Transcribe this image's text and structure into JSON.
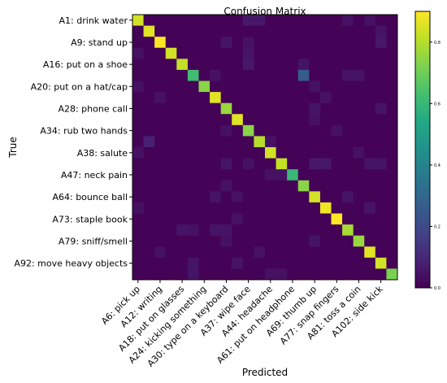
{
  "chart_data": {
    "type": "heatmap",
    "title": "Confusion Matrix",
    "xlabel": "Predicted",
    "ylabel": "True",
    "x_tick_labels": [
      "A6: pick up",
      "A12: writing",
      "A18: put on glasses",
      "A24: kicking something",
      "A30: type on a keyboard",
      "A37: wipe face",
      "A44: headache",
      "A61: put on headphone",
      "A69: thumb up",
      "A77: snap fingers",
      "A81: toss a coin",
      "A102: side kick"
    ],
    "y_tick_labels": [
      "A1: drink water",
      "A9: stand up",
      "A16: put on a shoe",
      "A20: put on a hat/cap",
      "A28: phone call",
      "A34: rub two hands",
      "A38: salute",
      "A47: neck pain",
      "A64: bounce ball",
      "A73: staple book",
      "A79: sniff/smell",
      "A92: move heavy objects"
    ],
    "tick_step": 2,
    "n_classes": 24,
    "colormap": "viridis",
    "colorbar": {
      "range": [
        0.0,
        0.9
      ],
      "ticks": [
        "0.0",
        "0.2",
        "0.4",
        "0.6",
        "0.8"
      ],
      "tick_values": [
        0.0,
        0.2,
        0.4,
        0.6,
        0.8
      ]
    },
    "diagonal": [
      0.84,
      0.86,
      0.9,
      0.84,
      0.82,
      0.62,
      0.74,
      0.86,
      0.76,
      0.86,
      0.74,
      0.8,
      0.84,
      0.82,
      0.6,
      0.74,
      0.84,
      0.88,
      0.94,
      0.78,
      0.76,
      0.86,
      0.84,
      0.72
    ],
    "off_diagonal": [
      {
        "row": 0,
        "col": 10,
        "value": 0.06
      },
      {
        "row": 0,
        "col": 11,
        "value": 0.06
      },
      {
        "row": 0,
        "col": 19,
        "value": 0.04
      },
      {
        "row": 0,
        "col": 21,
        "value": 0.04
      },
      {
        "row": 1,
        "col": 22,
        "value": 0.05
      },
      {
        "row": 2,
        "col": 8,
        "value": 0.05
      },
      {
        "row": 2,
        "col": 10,
        "value": 0.04
      },
      {
        "row": 2,
        "col": 22,
        "value": 0.06
      },
      {
        "row": 3,
        "col": 0,
        "value": 0.04
      },
      {
        "row": 3,
        "col": 10,
        "value": 0.05
      },
      {
        "row": 4,
        "col": 10,
        "value": 0.06
      },
      {
        "row": 4,
        "col": 15,
        "value": 0.05
      },
      {
        "row": 5,
        "col": 15,
        "value": 0.26
      },
      {
        "row": 5,
        "col": 7,
        "value": 0.04
      },
      {
        "row": 5,
        "col": 19,
        "value": 0.05
      },
      {
        "row": 5,
        "col": 20,
        "value": 0.05
      },
      {
        "row": 6,
        "col": 0,
        "value": 0.04
      },
      {
        "row": 6,
        "col": 16,
        "value": 0.04
      },
      {
        "row": 7,
        "col": 2,
        "value": 0.04
      },
      {
        "row": 7,
        "col": 17,
        "value": 0.04
      },
      {
        "row": 8,
        "col": 16,
        "value": 0.05
      },
      {
        "row": 8,
        "col": 22,
        "value": 0.05
      },
      {
        "row": 9,
        "col": 16,
        "value": 0.04
      },
      {
        "row": 10,
        "col": 8,
        "value": 0.04
      },
      {
        "row": 10,
        "col": 18,
        "value": 0.04
      },
      {
        "row": 11,
        "col": 1,
        "value": 0.08
      },
      {
        "row": 11,
        "col": 12,
        "value": 0.04
      },
      {
        "row": 12,
        "col": 0,
        "value": 0.04
      },
      {
        "row": 12,
        "col": 20,
        "value": 0.04
      },
      {
        "row": 13,
        "col": 8,
        "value": 0.05
      },
      {
        "row": 13,
        "col": 10,
        "value": 0.04
      },
      {
        "row": 13,
        "col": 16,
        "value": 0.06
      },
      {
        "row": 13,
        "col": 17,
        "value": 0.06
      },
      {
        "row": 13,
        "col": 21,
        "value": 0.05
      },
      {
        "row": 13,
        "col": 22,
        "value": 0.05
      },
      {
        "row": 14,
        "col": 12,
        "value": 0.04
      },
      {
        "row": 14,
        "col": 13,
        "value": 0.04
      },
      {
        "row": 15,
        "col": 8,
        "value": 0.04
      },
      {
        "row": 16,
        "col": 7,
        "value": 0.05
      },
      {
        "row": 16,
        "col": 9,
        "value": 0.04
      },
      {
        "row": 16,
        "col": 19,
        "value": 0.05
      },
      {
        "row": 17,
        "col": 0,
        "value": 0.04
      },
      {
        "row": 17,
        "col": 21,
        "value": 0.05
      },
      {
        "row": 18,
        "col": 9,
        "value": 0.04
      },
      {
        "row": 19,
        "col": 4,
        "value": 0.05
      },
      {
        "row": 19,
        "col": 5,
        "value": 0.04
      },
      {
        "row": 19,
        "col": 7,
        "value": 0.05
      },
      {
        "row": 19,
        "col": 8,
        "value": 0.05
      },
      {
        "row": 20,
        "col": 8,
        "value": 0.04
      },
      {
        "row": 20,
        "col": 16,
        "value": 0.05
      },
      {
        "row": 21,
        "col": 2,
        "value": 0.04
      },
      {
        "row": 21,
        "col": 11,
        "value": 0.04
      },
      {
        "row": 22,
        "col": 5,
        "value": 0.05
      },
      {
        "row": 22,
        "col": 9,
        "value": 0.05
      },
      {
        "row": 23,
        "col": 5,
        "value": 0.05
      },
      {
        "row": 23,
        "col": 12,
        "value": 0.04
      },
      {
        "row": 23,
        "col": 13,
        "value": 0.04
      }
    ]
  }
}
